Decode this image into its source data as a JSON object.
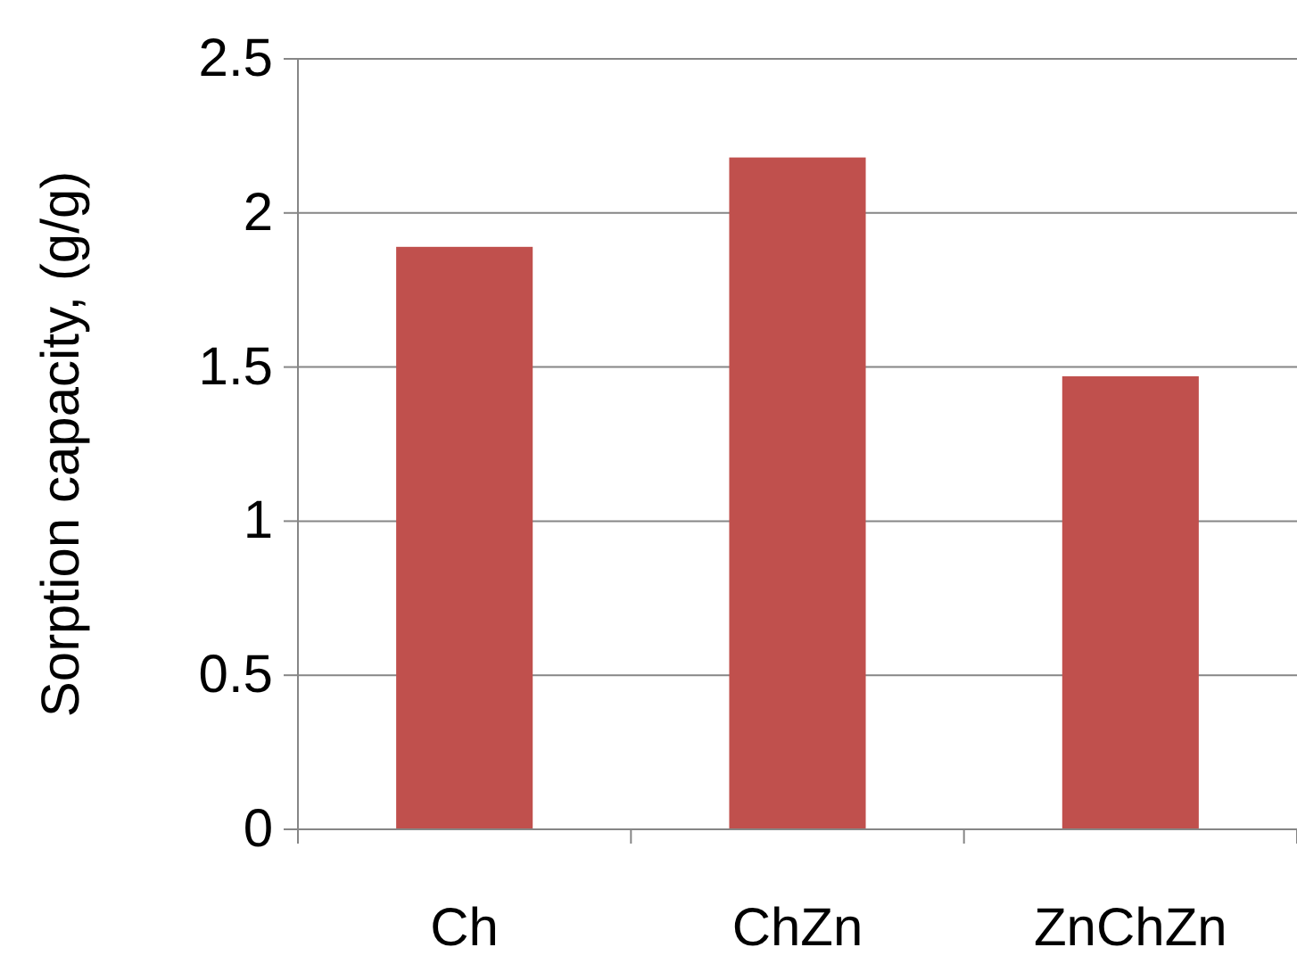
{
  "chart_data": {
    "type": "bar",
    "ylabel": "Sorption capacity, (g/g)",
    "categories": [
      "Ch",
      "ChZn",
      "ZnChZn"
    ],
    "values": [
      1.89,
      2.18,
      1.47
    ],
    "color": "#c0504d",
    "ylim": [
      0,
      2.5
    ],
    "yticks": [
      0,
      0.5,
      1,
      1.5,
      2,
      2.5
    ],
    "grid": "y"
  }
}
